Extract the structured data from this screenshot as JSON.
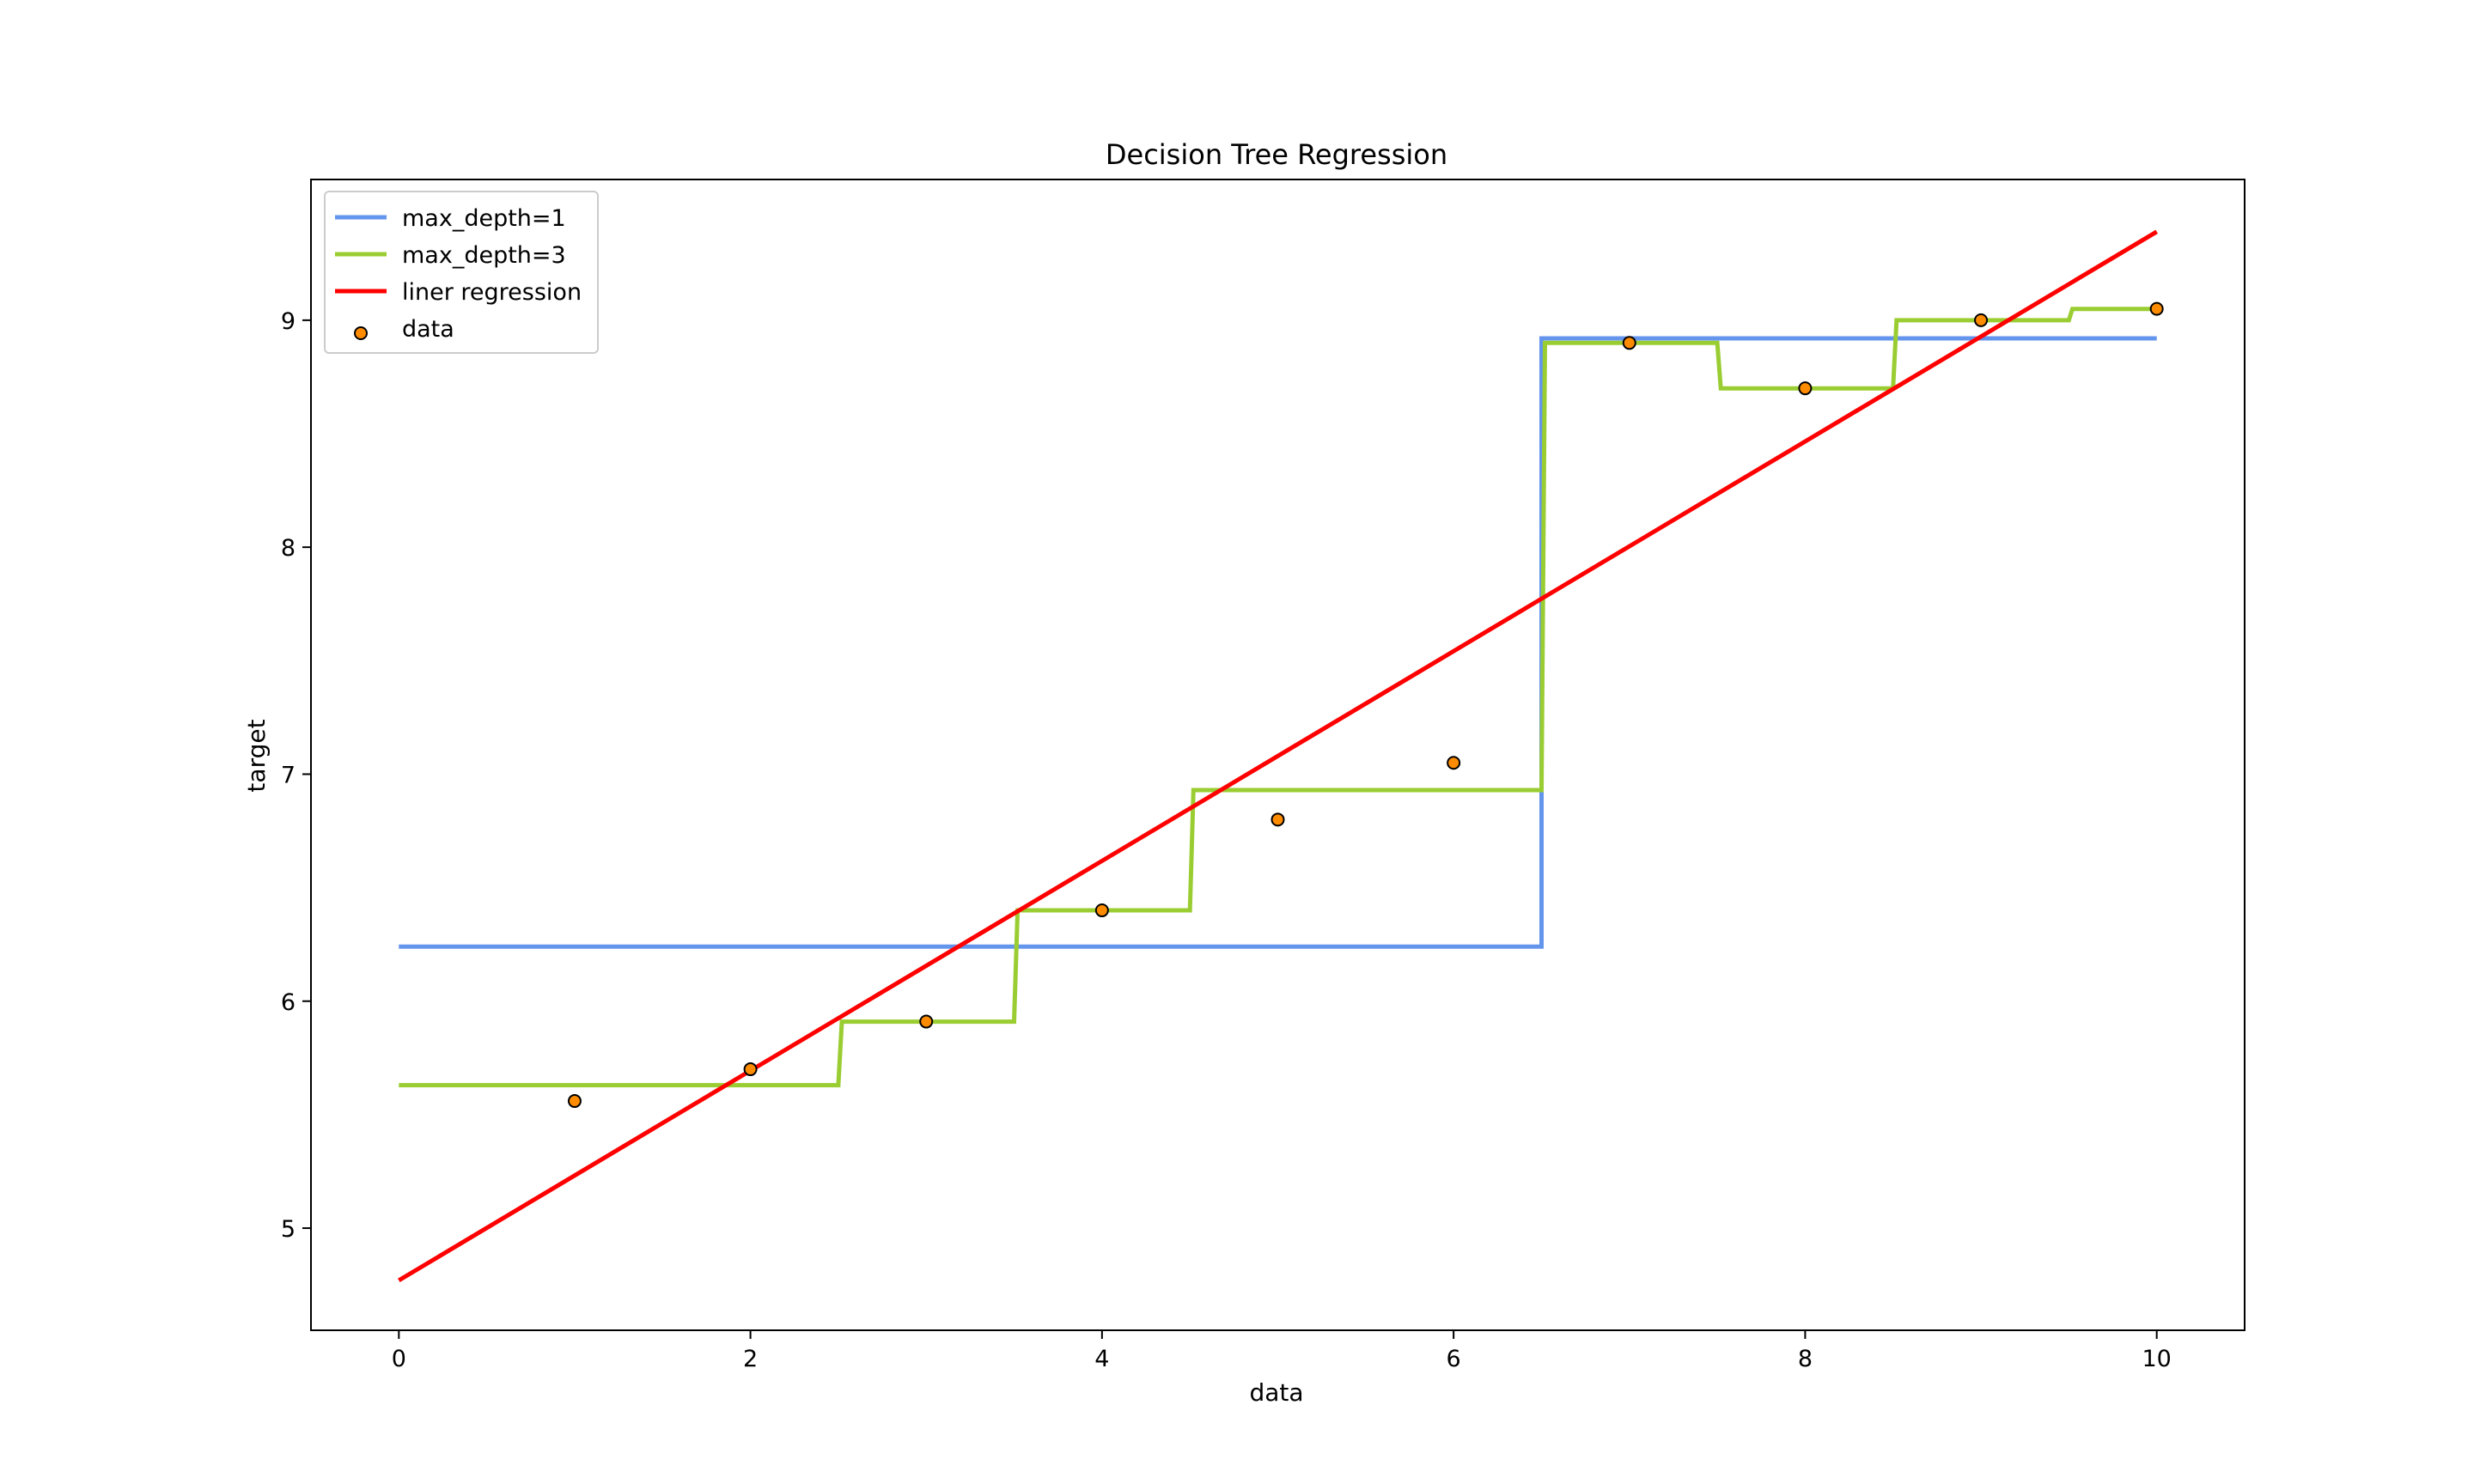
{
  "chart_data": {
    "type": "line",
    "title": "Decision Tree Regression",
    "xlabel": "data",
    "ylabel": "target",
    "xlim": [
      -0.5,
      10.5
    ],
    "ylim": [
      4.55,
      9.62
    ],
    "xticks": [
      0,
      2,
      4,
      6,
      8,
      10
    ],
    "yticks": [
      5,
      6,
      7,
      8,
      9
    ],
    "grid": false,
    "legend_position": "upper left",
    "series": [
      {
        "name": "max_depth=1",
        "kind": "step",
        "color": "#6495ED",
        "points": [
          [
            0,
            6.24
          ],
          [
            6.5,
            6.24
          ],
          [
            6.5,
            8.92
          ],
          [
            10,
            8.92
          ]
        ]
      },
      {
        "name": "max_depth=3",
        "kind": "step",
        "color": "#9ACD32",
        "points": [
          [
            0,
            5.63
          ],
          [
            2.5,
            5.63
          ],
          [
            2.52,
            5.91
          ],
          [
            3.5,
            5.91
          ],
          [
            3.52,
            6.4
          ],
          [
            4.5,
            6.4
          ],
          [
            4.52,
            6.93
          ],
          [
            6.5,
            6.93
          ],
          [
            6.52,
            8.9
          ],
          [
            7.5,
            8.9
          ],
          [
            7.52,
            8.7
          ],
          [
            8.5,
            8.7
          ],
          [
            8.52,
            9.0
          ],
          [
            9.5,
            9.0
          ],
          [
            9.52,
            9.05
          ],
          [
            10,
            9.05
          ]
        ]
      },
      {
        "name": "liner regression",
        "kind": "line",
        "color": "#FF0000",
        "points": [
          [
            0,
            4.77
          ],
          [
            10,
            9.39
          ]
        ]
      }
    ],
    "scatter": {
      "name": "data",
      "color": "#FF8C00",
      "edgecolor": "#000000",
      "x": [
        1,
        2,
        3,
        4,
        5,
        6,
        7,
        8,
        9,
        10
      ],
      "y": [
        5.56,
        5.7,
        5.91,
        6.4,
        6.8,
        7.05,
        8.9,
        8.7,
        9.0,
        9.05
      ]
    }
  }
}
